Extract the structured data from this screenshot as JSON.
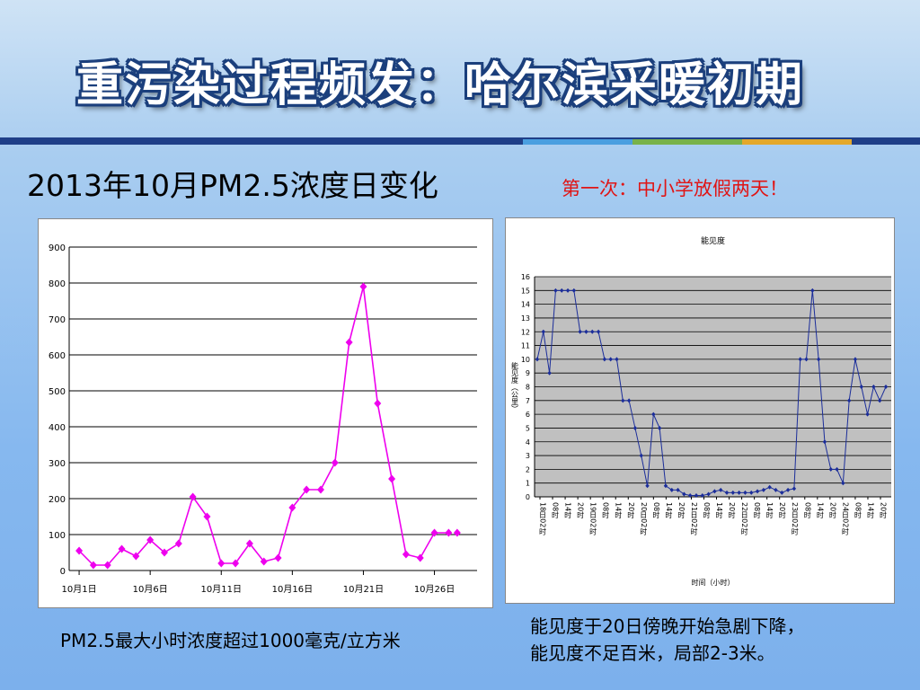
{
  "slide": {
    "title": "重污染过程频发：哈尔滨采暖初期",
    "subtitle": "2013年10月PM2.5浓度日变化",
    "note": "第一次：中小学放假两天！",
    "caption_left": "PM2.5最大小时浓度超过1000毫克/立方米",
    "caption_right_line1": "能见度于20日傍晚开始急剧下降，",
    "caption_right_line2": "能见度不足百米，局部2-3米。",
    "rule_colors": [
      "#1f3f88",
      "#4a9fe0",
      "#78b24a",
      "#e3a82b"
    ]
  },
  "chart_data": [
    {
      "type": "line",
      "title": "",
      "xlabel": "",
      "ylabel": "",
      "ylim": [
        0,
        900
      ],
      "yticks": [
        "0",
        "100",
        "200",
        "300",
        "400",
        "500",
        "600",
        "700",
        "800",
        "900"
      ],
      "x_tick_labels": [
        "10月1日",
        "10月6日",
        "10月11日",
        "10月16日",
        "10月21日",
        "10月26日"
      ],
      "x_tick_days": [
        1,
        6,
        11,
        16,
        21,
        26
      ],
      "color": "#ee00ee",
      "grid": true,
      "series": [
        {
          "x": [
            1,
            2,
            3,
            4,
            5,
            6,
            7,
            8,
            9,
            10,
            11,
            12,
            13,
            14,
            15,
            16,
            17,
            18,
            19,
            20,
            21,
            22,
            23,
            24,
            25,
            26,
            27
          ],
          "values": [
            55,
            15,
            15,
            60,
            40,
            85,
            50,
            75,
            205,
            150,
            20,
            20,
            75,
            25,
            35,
            175,
            225,
            225,
            300,
            635,
            790,
            465,
            255,
            45,
            35,
            105,
            105
          ]
        },
        {
          "x": [
            27.6
          ],
          "values": [
            105
          ]
        }
      ]
    },
    {
      "type": "line",
      "title": "能见度",
      "xlabel": "时间（小时）",
      "ylabel": "能见度（公里）",
      "ylim": [
        0,
        16
      ],
      "yticks": [
        "0",
        "1",
        "2",
        "3",
        "4",
        "5",
        "6",
        "7",
        "8",
        "9",
        "10",
        "11",
        "12",
        "13",
        "14",
        "15",
        "16"
      ],
      "x_tick_labels": [
        "18日02时",
        "08时",
        "14时",
        "20时",
        "19日02时",
        "08时",
        "14时",
        "20时",
        "20日02时",
        "08时",
        "14时",
        "20时",
        "21日02时",
        "08时",
        "14时",
        "20时",
        "22日02时",
        "08时",
        "14时",
        "20时",
        "23日02时",
        "08时",
        "14时",
        "20时",
        "24日02时",
        "08时",
        "14时",
        "20时"
      ],
      "color": "#1b2d9a",
      "grid": true,
      "plot_background": "#c0c0c0",
      "values": [
        10,
        12,
        9,
        15,
        15,
        15,
        15,
        12,
        12,
        12,
        12,
        10,
        10,
        10,
        7,
        7,
        5,
        3,
        0.8,
        6,
        5,
        0.8,
        0.5,
        0.5,
        0.2,
        0.1,
        0.1,
        0.1,
        0.2,
        0.4,
        0.5,
        0.3,
        0.3,
        0.3,
        0.3,
        0.3,
        0.4,
        0.5,
        0.7,
        0.5,
        0.3,
        0.5,
        0.6,
        10,
        10,
        15,
        10,
        4,
        2,
        2,
        1,
        7,
        10,
        8,
        6,
        8,
        7,
        8
      ]
    }
  ]
}
